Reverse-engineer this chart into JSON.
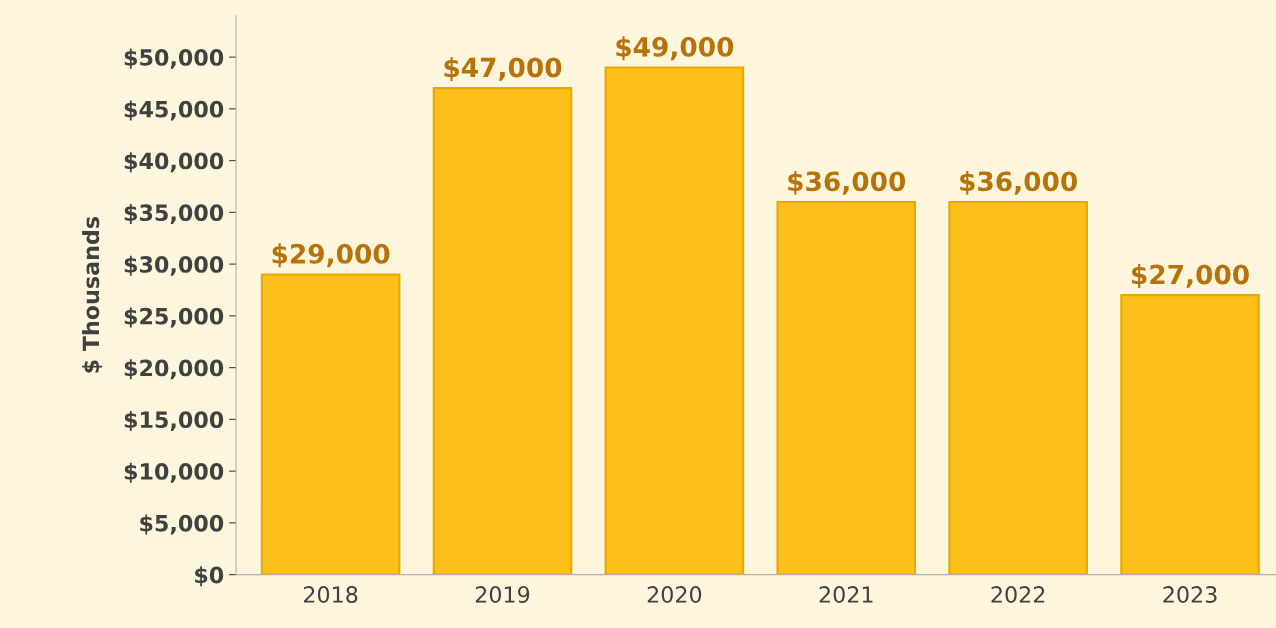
{
  "chart_data": {
    "type": "bar",
    "ylabel": "$ Thousands",
    "categories": [
      "2018",
      "2019",
      "2020",
      "2021",
      "2022",
      "2023"
    ],
    "values": [
      29000,
      47000,
      49000,
      36000,
      36000,
      27000
    ],
    "value_labels": [
      "$29,000",
      "$47,000",
      "$49,000",
      "$36,000",
      "$36,000",
      "$27,000"
    ],
    "color": "#fdbf1c",
    "ylim": [
      0,
      54000
    ],
    "yticks": [
      {
        "value": 0,
        "label": "$0"
      },
      {
        "value": 5000,
        "label": "$5,000"
      },
      {
        "value": 10000,
        "label": "$10,000"
      },
      {
        "value": 15000,
        "label": "$15,000"
      },
      {
        "value": 20000,
        "label": "$20,000"
      },
      {
        "value": 25000,
        "label": "$25,000"
      },
      {
        "value": 30000,
        "label": "$30,000"
      },
      {
        "value": 35000,
        "label": "$35,000"
      },
      {
        "value": 40000,
        "label": "$40,000"
      },
      {
        "value": 45000,
        "label": "$45,000"
      },
      {
        "value": 50000,
        "label": "$50,000"
      }
    ],
    "grid": false,
    "legend": false
  }
}
